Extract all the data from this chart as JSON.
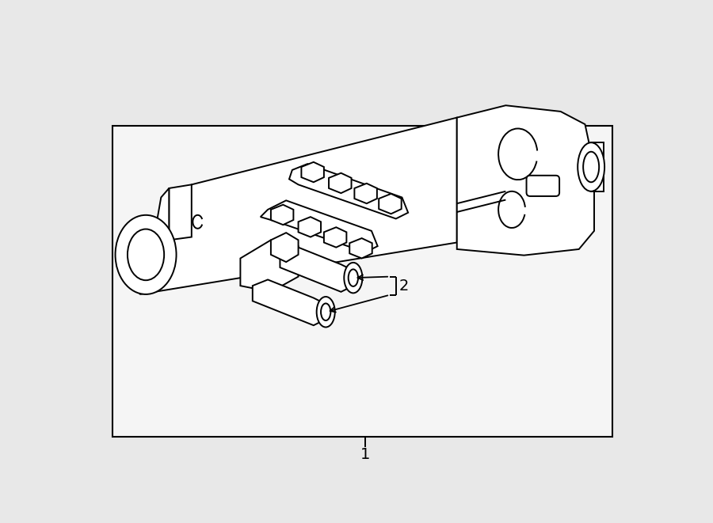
{
  "bg_color": "#e8e8e8",
  "box_bg": "#f5f5f5",
  "line_color": "#000000",
  "lw": 1.4,
  "figsize": [
    9.0,
    6.61
  ],
  "dpi": 100,
  "label1": "1",
  "label2": "2"
}
